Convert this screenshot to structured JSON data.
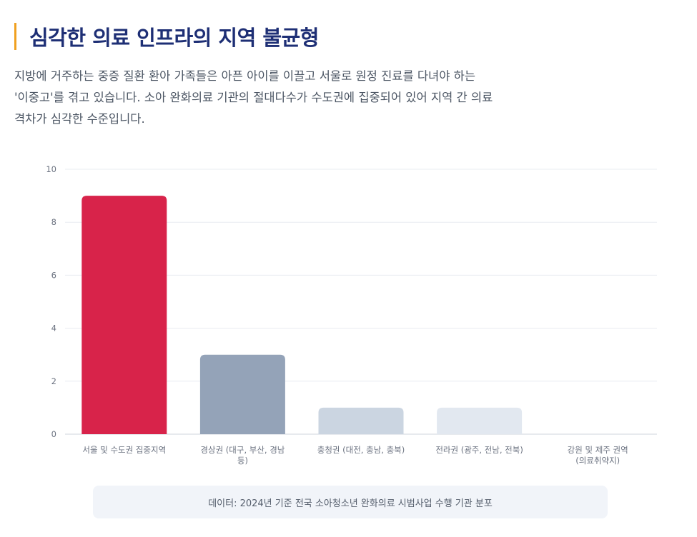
{
  "header": {
    "title": "심각한 의료 인프라의 지역 불균형"
  },
  "intro": {
    "lines": [
      "지방에 거주하는 중증 질환 환아 가족들은 아픈 아이를 이끌고 서울로 원정 진료를 다녀야 하는",
      "'이중고'를 겪고 있습니다. 소아 완화의료 기관의 절대다수가 수도권에 집중되어 있어 지역 간 의료",
      "격차가 심각한 수준입니다."
    ]
  },
  "chart_data": {
    "type": "bar",
    "categories": [
      [
        "서울 및 수도권 집중지역"
      ],
      [
        "경상권 (대구, 부산, 경남",
        "등)"
      ],
      [
        "충청권 (대전, 충남, 충북)"
      ],
      [
        "전라권 (광주, 전남, 전북)"
      ],
      [
        "강원 및 제주 권역",
        "(의료취약지)"
      ]
    ],
    "values": [
      9,
      3,
      1,
      1,
      0
    ],
    "ylim": [
      0,
      10
    ],
    "yticks": [
      "0",
      "2",
      "4",
      "6",
      "8",
      "10"
    ],
    "grid": true,
    "legend": "none",
    "colors": [
      "#d8234a",
      "#94a3b8",
      "#cbd5e1",
      "#e2e8f0",
      "#e2e8f0"
    ]
  },
  "footnote": {
    "text": "데이터: 2024년 기준 전국 소아청소년 완화의료 시범사업 수행 기관 분포"
  }
}
